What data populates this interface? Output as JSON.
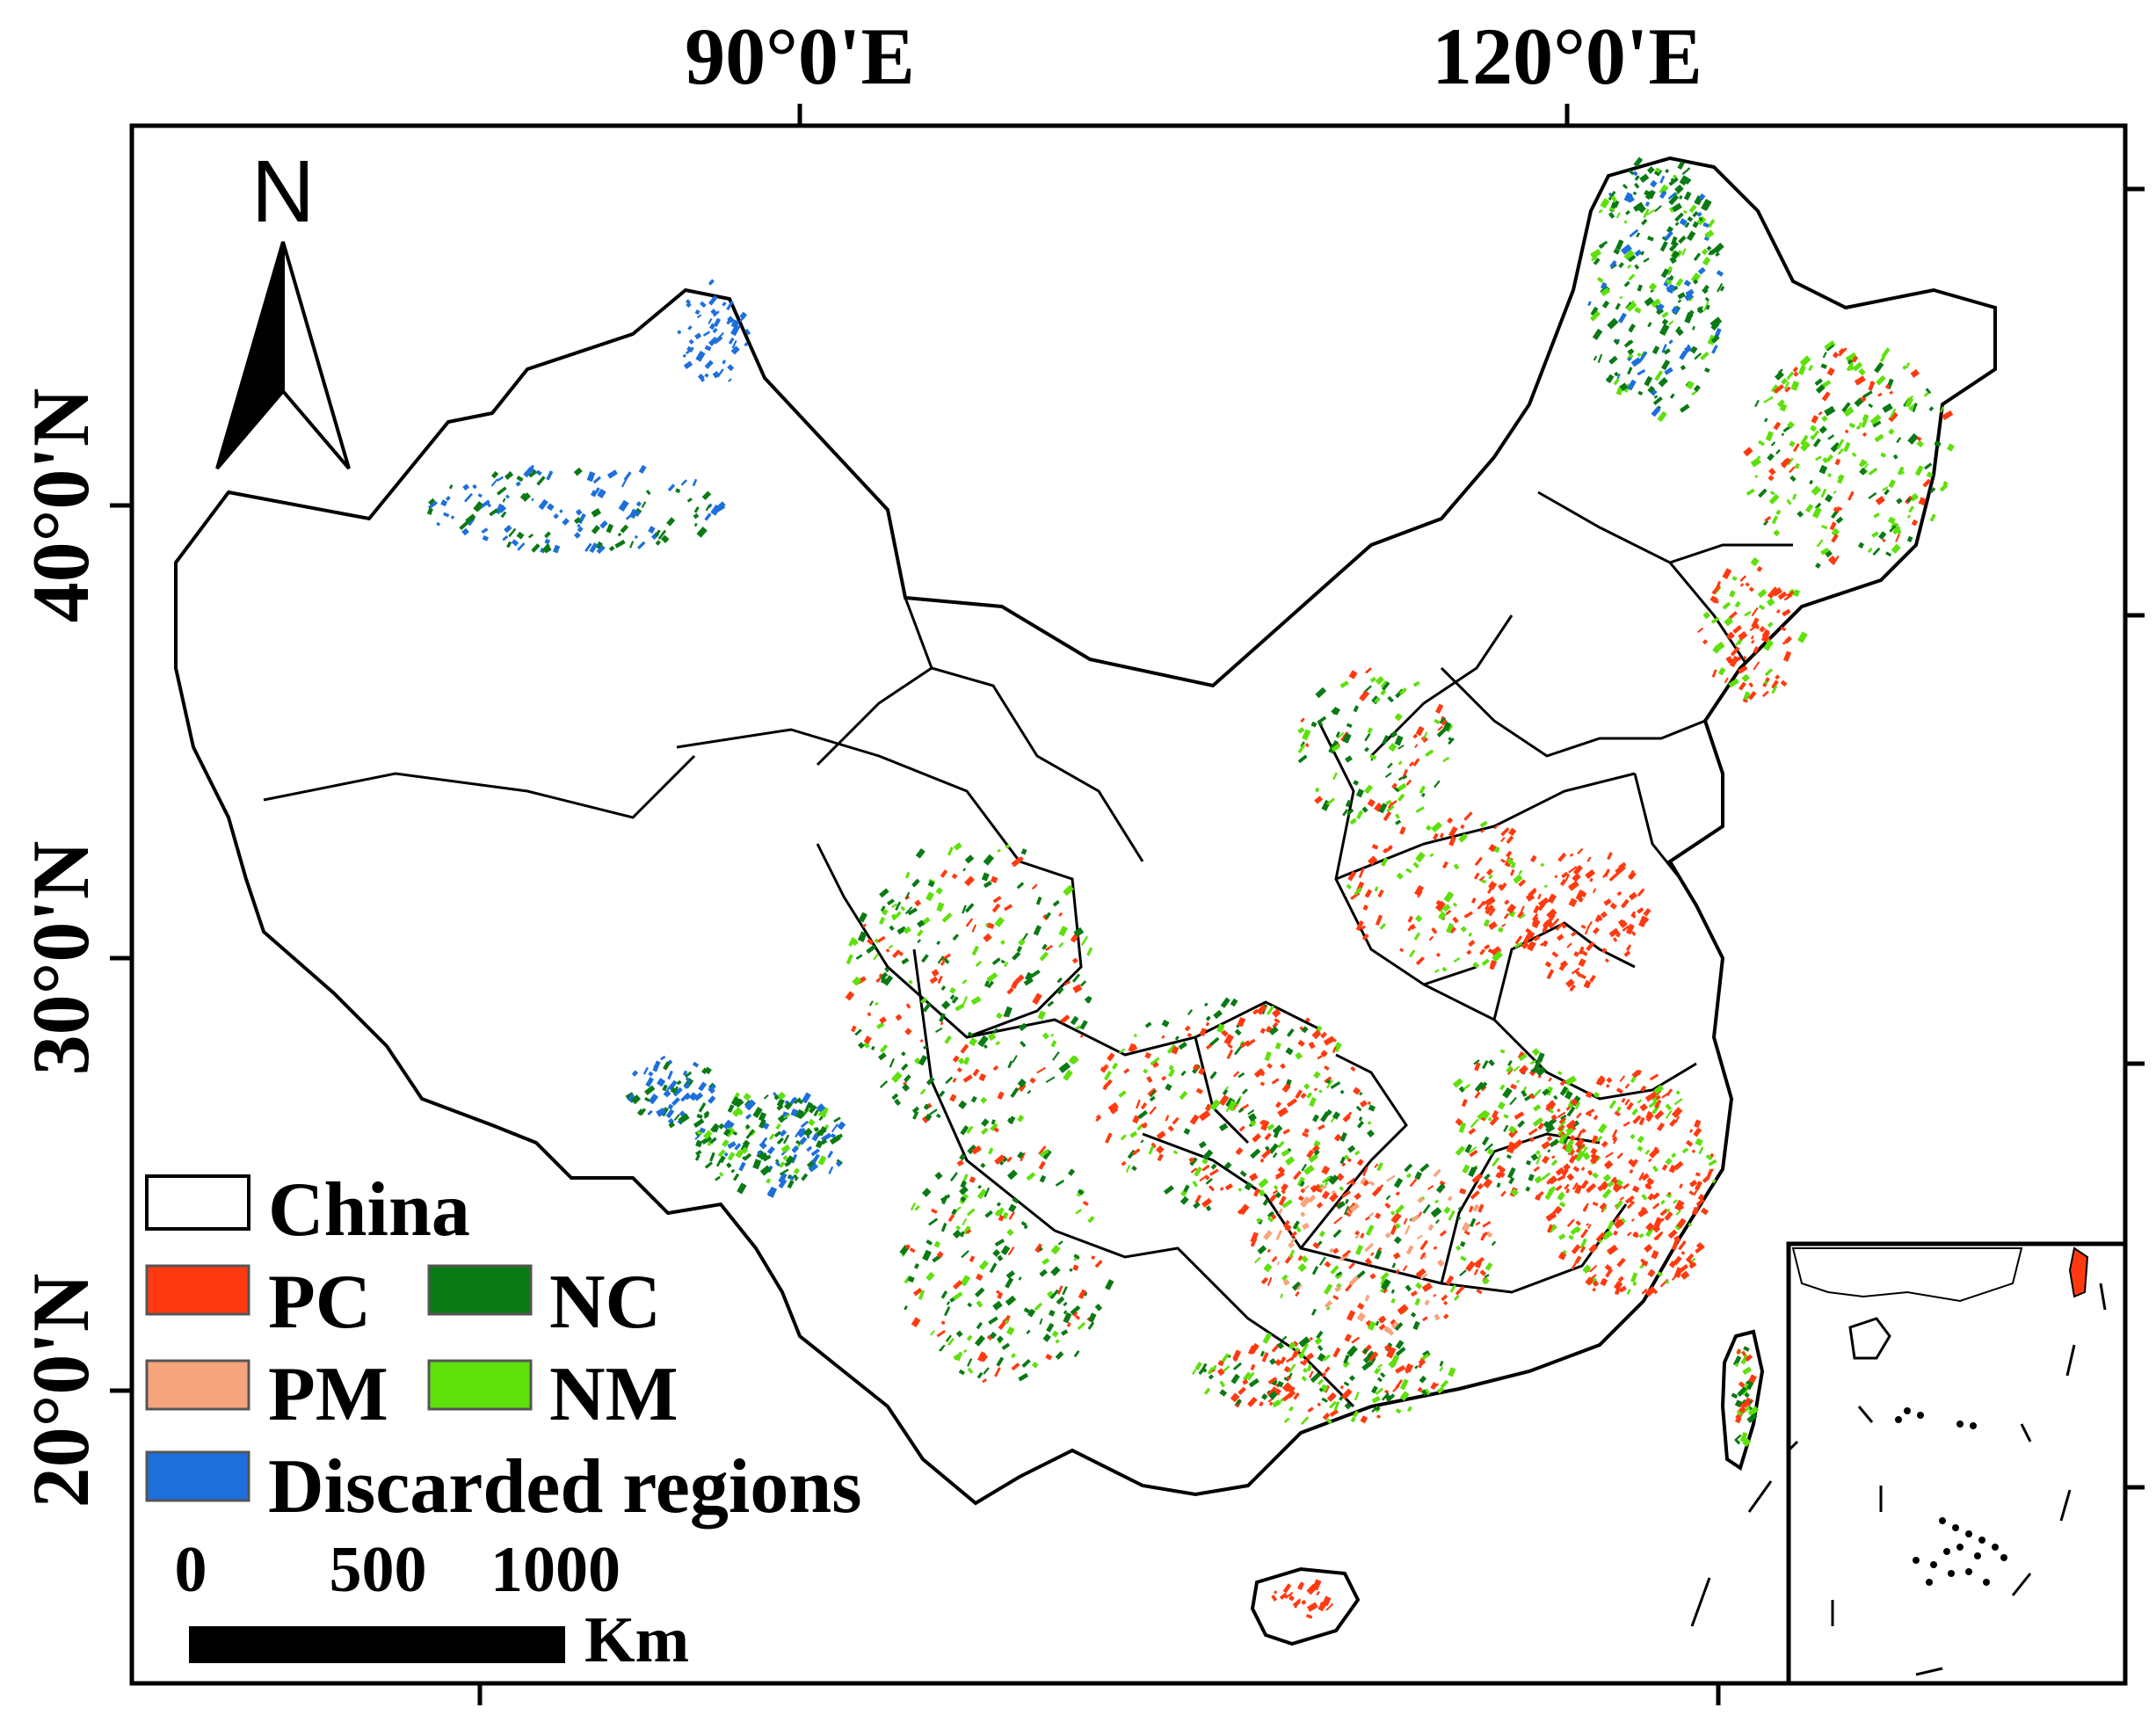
{
  "map": {
    "longitude_labels": [
      "90°0'E",
      "120°0'E"
    ],
    "latitude_labels": [
      "40°0'N",
      "30°0'N",
      "20°0'N"
    ],
    "north_arrow": {
      "icon": "north-arrow-icon",
      "label": "N"
    },
    "legend": {
      "items": [
        {
          "label": "China",
          "color": "#ffffff"
        },
        {
          "label": "PC",
          "color": "#ff3a10"
        },
        {
          "label": "NC",
          "color": "#0a7a14"
        },
        {
          "label": "PM",
          "color": "#f6a47c"
        },
        {
          "label": "NM",
          "color": "#5ee00a"
        },
        {
          "label": "Discarded regions",
          "color": "#1e6fdc"
        }
      ]
    },
    "scale_bar": {
      "ticks": [
        "0",
        "500",
        "1000"
      ],
      "unit": "Km"
    }
  }
}
